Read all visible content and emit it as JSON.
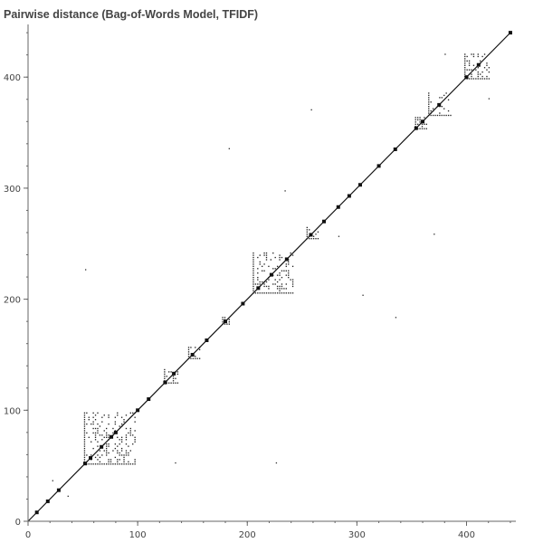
{
  "chart_data": {
    "type": "heatmap",
    "title": "Pairwise distance (Bag-of-Words Model, TFIDF)",
    "xlabel": "",
    "ylabel": "",
    "xlim": [
      0,
      445
    ],
    "ylim": [
      0,
      445
    ],
    "xticks": [
      0,
      100,
      200,
      300,
      400
    ],
    "yticks": [
      0,
      100,
      200,
      300,
      400
    ],
    "grid": false,
    "diagonal": [
      0,
      440
    ],
    "diagonal_markers": [
      8,
      18,
      28,
      52,
      57,
      67,
      76,
      80,
      100,
      110,
      125,
      133,
      150,
      163,
      180,
      196,
      210,
      222,
      236,
      258,
      270,
      283,
      293,
      303,
      320,
      335,
      354,
      360,
      375,
      400,
      411,
      440
    ],
    "blocks": [
      {
        "x": [
          51,
          98
        ],
        "y": [
          51,
          98
        ],
        "density": 0.55
      },
      {
        "x": [
          124,
          136
        ],
        "y": [
          124,
          136
        ],
        "density": 0.7
      },
      {
        "x": [
          146,
          157
        ],
        "y": [
          146,
          157
        ],
        "density": 0.6
      },
      {
        "x": [
          177,
          184
        ],
        "y": [
          177,
          184
        ],
        "density": 0.9
      },
      {
        "x": [
          205,
          242
        ],
        "y": [
          205,
          242
        ],
        "density": 0.5
      },
      {
        "x": [
          254,
          265
        ],
        "y": [
          254,
          265
        ],
        "density": 0.4
      },
      {
        "x": [
          353,
          363
        ],
        "y": [
          353,
          363
        ],
        "density": 0.8
      },
      {
        "x": [
          365,
          385
        ],
        "y": [
          365,
          385
        ],
        "density": 0.35
      },
      {
        "x": [
          398,
          420
        ],
        "y": [
          398,
          420
        ],
        "density": 0.75
      }
    ],
    "outliers": [
      [
        52,
        226
      ],
      [
        134,
        52
      ],
      [
        183,
        335
      ],
      [
        226,
        52
      ],
      [
        234,
        297
      ],
      [
        258,
        370
      ],
      [
        262,
        258
      ],
      [
        283,
        256
      ],
      [
        305,
        203
      ],
      [
        335,
        183
      ],
      [
        370,
        258
      ],
      [
        22,
        36
      ],
      [
        36,
        22
      ],
      [
        420,
        380
      ],
      [
        380,
        420
      ]
    ]
  }
}
